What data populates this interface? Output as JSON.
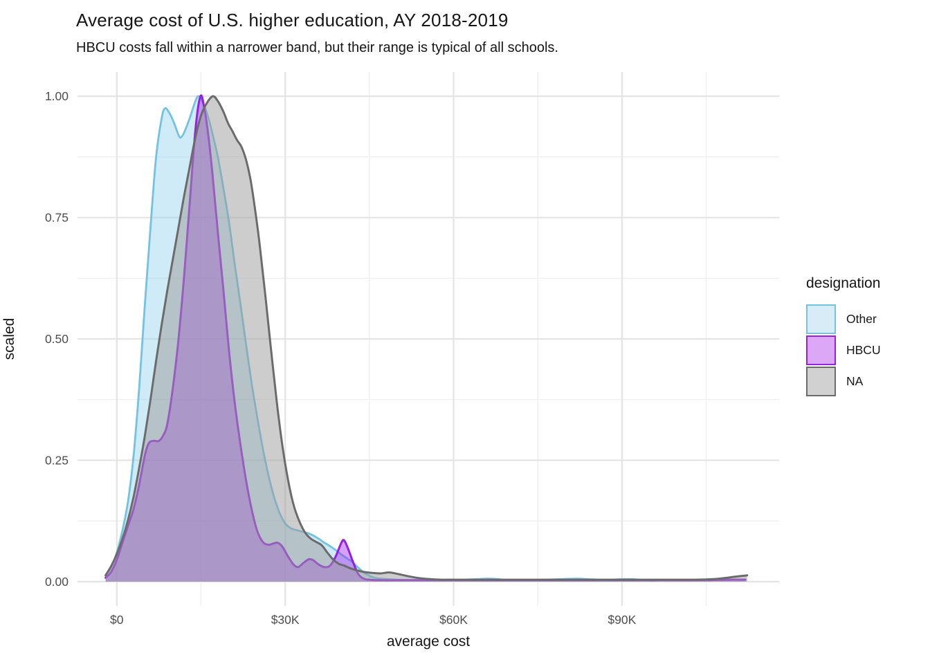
{
  "header": {
    "title": "Average cost of U.S. higher education, AY 2018-2019",
    "subtitle": "HBCU costs fall within a narrower band, but their range is typical of all schools."
  },
  "axes": {
    "x": {
      "label": "average cost",
      "ticks": [
        {
          "label": "$0",
          "value": 0
        },
        {
          "label": "$30K",
          "value": 30
        },
        {
          "label": "$60K",
          "value": 60
        },
        {
          "label": "$90K",
          "value": 90
        }
      ],
      "minor_ticks": [
        15,
        45,
        75,
        105
      ]
    },
    "y": {
      "label": "scaled",
      "ticks": [
        {
          "label": "0.00",
          "value": 0
        },
        {
          "label": "0.25",
          "value": 0.25
        },
        {
          "label": "0.50",
          "value": 0.5
        },
        {
          "label": "0.75",
          "value": 0.75
        },
        {
          "label": "1.00",
          "value": 1
        }
      ],
      "minor_ticks": [
        0.125,
        0.375,
        0.625,
        0.875
      ]
    }
  },
  "legend": {
    "title": "designation",
    "items": [
      {
        "label": "Other"
      },
      {
        "label": "HBCU"
      },
      {
        "label": "NA"
      }
    ]
  },
  "colors": {
    "background": "#FFFFFF",
    "grid_major": "#E4E4E4",
    "grid_minor": "#F1F1F1",
    "tick_label": "#4D4D4D",
    "text": "#161616"
  },
  "chart_data": {
    "type": "area",
    "subtype": "scaled-density",
    "title": "Average cost of U.S. higher education, AY 2018-2019",
    "subtitle": "HBCU costs fall within a narrower band, but their range is typical of all schools.",
    "xlabel": "average cost",
    "ylabel": "scaled",
    "x_unit": "thousand USD",
    "xlim": [
      -7,
      118
    ],
    "ylim": [
      -0.05,
      1.05
    ],
    "x_ticks": [
      0,
      30,
      60,
      90
    ],
    "y_ticks": [
      0,
      0.25,
      0.5,
      0.75,
      1
    ],
    "grid": true,
    "legend_position": "right",
    "legend_title": "designation",
    "series": [
      {
        "name": "Other",
        "stroke": "#74C2E1",
        "fill": "#87CEEB",
        "fill_opacity": 0.4,
        "swatch_fill": "#D8ECF7",
        "stroke_width": 2.8,
        "points": [
          [
            -2,
            0.012
          ],
          [
            -1,
            0.03
          ],
          [
            0,
            0.06
          ],
          [
            1,
            0.105
          ],
          [
            2,
            0.165
          ],
          [
            3,
            0.26
          ],
          [
            4,
            0.4
          ],
          [
            5,
            0.57
          ],
          [
            6,
            0.73
          ],
          [
            7,
            0.875
          ],
          [
            8,
            0.955
          ],
          [
            8.6,
            0.975
          ],
          [
            9.4,
            0.965
          ],
          [
            10.2,
            0.945
          ],
          [
            11,
            0.92
          ],
          [
            11.4,
            0.915
          ],
          [
            12,
            0.925
          ],
          [
            13,
            0.955
          ],
          [
            14,
            0.99
          ],
          [
            14.6,
            1.0
          ],
          [
            15.4,
            0.985
          ],
          [
            16.2,
            0.96
          ],
          [
            17,
            0.925
          ],
          [
            18,
            0.875
          ],
          [
            19,
            0.81
          ],
          [
            20,
            0.74
          ],
          [
            21,
            0.655
          ],
          [
            22,
            0.575
          ],
          [
            23,
            0.49
          ],
          [
            24,
            0.41
          ],
          [
            25,
            0.34
          ],
          [
            26,
            0.275
          ],
          [
            27,
            0.22
          ],
          [
            28,
            0.175
          ],
          [
            29,
            0.142
          ],
          [
            30,
            0.12
          ],
          [
            31,
            0.11
          ],
          [
            32,
            0.106
          ],
          [
            33,
            0.103
          ],
          [
            34,
            0.1
          ],
          [
            35,
            0.095
          ],
          [
            36,
            0.088
          ],
          [
            37,
            0.08
          ],
          [
            38,
            0.073
          ],
          [
            39,
            0.065
          ],
          [
            40,
            0.056
          ],
          [
            41,
            0.048
          ],
          [
            42,
            0.04
          ],
          [
            43,
            0.029
          ],
          [
            44,
            0.019
          ],
          [
            45,
            0.012
          ],
          [
            46,
            0.008
          ],
          [
            47,
            0.006
          ],
          [
            48.5,
            0.005
          ],
          [
            50,
            0.004
          ],
          [
            53,
            0.003
          ],
          [
            56,
            0.003
          ],
          [
            59,
            0.004
          ],
          [
            62,
            0.004
          ],
          [
            64,
            0.005
          ],
          [
            66,
            0.006
          ],
          [
            68,
            0.005
          ],
          [
            70,
            0.003
          ],
          [
            73,
            0.003
          ],
          [
            76,
            0.004
          ],
          [
            79,
            0.005
          ],
          [
            82,
            0.006
          ],
          [
            84,
            0.005
          ],
          [
            86,
            0.004
          ],
          [
            88,
            0.004
          ],
          [
            90,
            0.005
          ],
          [
            92,
            0.005
          ],
          [
            94,
            0.003
          ],
          [
            96,
            0.002
          ]
        ]
      },
      {
        "name": "HBCU",
        "stroke": "#9321DF",
        "fill": "#A020F0",
        "fill_opacity": 0.42,
        "swatch_fill": "#DBA7F6",
        "stroke_width": 3,
        "points": [
          [
            -2,
            0.008
          ],
          [
            -1,
            0.02
          ],
          [
            0,
            0.045
          ],
          [
            1,
            0.08
          ],
          [
            2,
            0.115
          ],
          [
            3,
            0.15
          ],
          [
            4,
            0.2
          ],
          [
            5,
            0.26
          ],
          [
            5.7,
            0.285
          ],
          [
            6.5,
            0.29
          ],
          [
            7.5,
            0.29
          ],
          [
            8.3,
            0.302
          ],
          [
            9,
            0.325
          ],
          [
            10,
            0.4
          ],
          [
            11,
            0.5
          ],
          [
            12,
            0.63
          ],
          [
            13,
            0.78
          ],
          [
            14,
            0.93
          ],
          [
            14.9,
            1.0
          ],
          [
            15.6,
            0.975
          ],
          [
            16.3,
            0.92
          ],
          [
            17,
            0.845
          ],
          [
            18,
            0.72
          ],
          [
            19,
            0.6
          ],
          [
            20,
            0.475
          ],
          [
            21,
            0.37
          ],
          [
            22,
            0.285
          ],
          [
            23,
            0.21
          ],
          [
            24,
            0.15
          ],
          [
            25,
            0.105
          ],
          [
            26,
            0.082
          ],
          [
            27,
            0.076
          ],
          [
            28,
            0.079
          ],
          [
            28.7,
            0.08
          ],
          [
            29.5,
            0.072
          ],
          [
            30.5,
            0.052
          ],
          [
            31.5,
            0.035
          ],
          [
            32.3,
            0.03
          ],
          [
            33.2,
            0.038
          ],
          [
            34.2,
            0.046
          ],
          [
            35,
            0.044
          ],
          [
            36,
            0.035
          ],
          [
            37,
            0.03
          ],
          [
            38,
            0.033
          ],
          [
            39,
            0.052
          ],
          [
            40,
            0.08
          ],
          [
            40.5,
            0.085
          ],
          [
            41.2,
            0.068
          ],
          [
            42,
            0.043
          ],
          [
            43,
            0.016
          ],
          [
            44,
            0.006
          ],
          [
            45,
            0.004
          ],
          [
            47,
            0.003
          ],
          [
            50,
            0.003
          ],
          [
            55,
            0.003
          ],
          [
            60,
            0.003
          ],
          [
            65,
            0.003
          ],
          [
            70,
            0.003
          ],
          [
            75,
            0.003
          ],
          [
            80,
            0.003
          ],
          [
            85,
            0.003
          ],
          [
            90,
            0.003
          ],
          [
            95,
            0.003
          ],
          [
            100,
            0.003
          ],
          [
            105,
            0.003
          ],
          [
            109,
            0.004
          ],
          [
            112,
            0.004
          ]
        ]
      },
      {
        "name": "NA",
        "stroke": "#6B6B6B",
        "fill": "#9C9C9C",
        "fill_opacity": 0.5,
        "swatch_fill": "#D1D1D1",
        "stroke_width": 3,
        "points": [
          [
            -2,
            0.013
          ],
          [
            -1,
            0.032
          ],
          [
            0,
            0.057
          ],
          [
            1,
            0.088
          ],
          [
            2,
            0.127
          ],
          [
            3,
            0.175
          ],
          [
            4,
            0.235
          ],
          [
            5,
            0.3
          ],
          [
            6,
            0.375
          ],
          [
            7,
            0.455
          ],
          [
            8,
            0.53
          ],
          [
            9,
            0.6
          ],
          [
            10,
            0.665
          ],
          [
            11,
            0.73
          ],
          [
            12,
            0.795
          ],
          [
            13,
            0.855
          ],
          [
            14,
            0.915
          ],
          [
            15,
            0.96
          ],
          [
            16,
            0.985
          ],
          [
            17.1,
            1.0
          ],
          [
            18,
            0.99
          ],
          [
            19,
            0.968
          ],
          [
            19.8,
            0.945
          ],
          [
            20.6,
            0.928
          ],
          [
            21.4,
            0.91
          ],
          [
            22.2,
            0.896
          ],
          [
            23,
            0.87
          ],
          [
            23.8,
            0.83
          ],
          [
            24.6,
            0.77
          ],
          [
            25.5,
            0.69
          ],
          [
            26.5,
            0.585
          ],
          [
            27.5,
            0.475
          ],
          [
            28.5,
            0.37
          ],
          [
            29.5,
            0.28
          ],
          [
            30.5,
            0.21
          ],
          [
            31.5,
            0.158
          ],
          [
            32.5,
            0.125
          ],
          [
            33.5,
            0.102
          ],
          [
            34.5,
            0.089
          ],
          [
            35.5,
            0.082
          ],
          [
            36.5,
            0.075
          ],
          [
            37.5,
            0.06
          ],
          [
            38.5,
            0.046
          ],
          [
            39.5,
            0.037
          ],
          [
            40.5,
            0.033
          ],
          [
            41.5,
            0.028
          ],
          [
            42.5,
            0.024
          ],
          [
            44,
            0.02
          ],
          [
            45.5,
            0.018
          ],
          [
            47,
            0.017
          ],
          [
            48.5,
            0.019
          ],
          [
            50,
            0.016
          ],
          [
            52,
            0.011
          ],
          [
            54,
            0.007
          ],
          [
            56,
            0.005
          ],
          [
            58,
            0.004
          ],
          [
            60,
            0.004
          ],
          [
            64,
            0.004
          ],
          [
            68,
            0.004
          ],
          [
            72,
            0.004
          ],
          [
            76,
            0.004
          ],
          [
            80,
            0.004
          ],
          [
            84,
            0.004
          ],
          [
            88,
            0.004
          ],
          [
            92,
            0.004
          ],
          [
            96,
            0.004
          ],
          [
            100,
            0.004
          ],
          [
            103,
            0.004
          ],
          [
            106,
            0.005
          ],
          [
            108,
            0.007
          ],
          [
            110,
            0.01
          ],
          [
            111.5,
            0.012
          ],
          [
            112.3,
            0.013
          ]
        ]
      }
    ]
  }
}
